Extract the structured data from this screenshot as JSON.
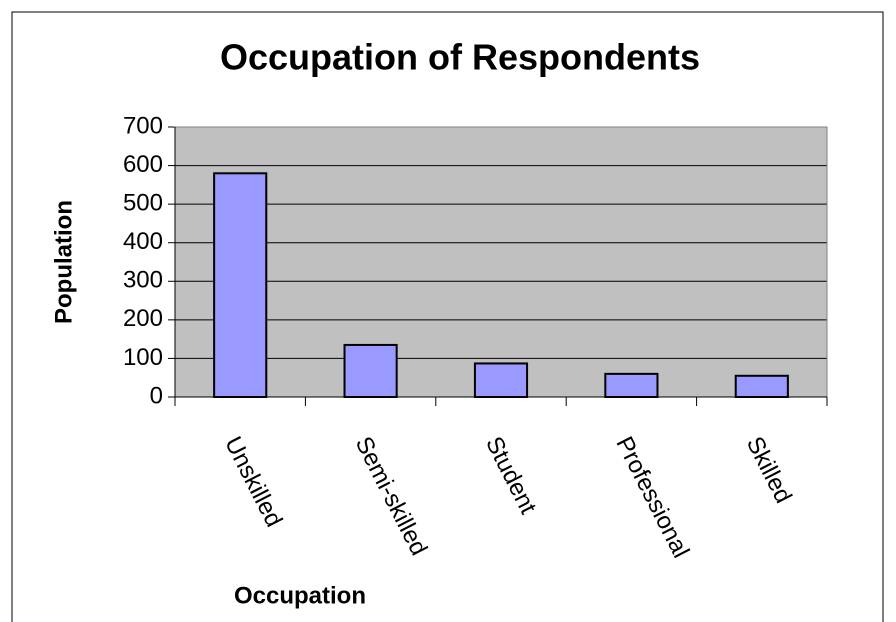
{
  "chart_data": {
    "type": "bar",
    "title": "Occupation of Respondents",
    "x_label": "Occupation",
    "y_label": "Population",
    "categories": [
      "Unskilled",
      "Semi-skilled",
      "Student",
      "Professional",
      "Skilled"
    ],
    "values": [
      580,
      135,
      87,
      60,
      55
    ],
    "color": "#9999ff",
    "ylim": [
      0,
      700
    ],
    "yticks": [
      0,
      100,
      200,
      300,
      400,
      500,
      600,
      700
    ],
    "grid": true
  }
}
